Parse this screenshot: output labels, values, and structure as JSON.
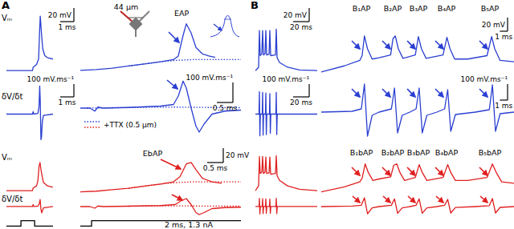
{
  "chart_data": [
    {
      "type": "line",
      "title": "A",
      "ylabel": "Vₘ",
      "xlim": [
        0,
        3.4
      ],
      "ylim": [
        -75,
        25
      ],
      "tick_labels": false,
      "scale_bar": {
        "x": 1,
        "x_label": "1 ms",
        "y": 20,
        "y_label": "20 mV"
      },
      "series": [
        {
          "color": "#2a3fd1",
          "line_style": "solid",
          "x": [
            0,
            1.9,
            1.95,
            2.2,
            2.35,
            2.42,
            2.47,
            2.55,
            2.65,
            2.8,
            3.0,
            3.4
          ],
          "values": [
            -67,
            -67,
            -62,
            -58,
            -50,
            -10,
            13,
            -10,
            -35,
            -45,
            -48,
            -50
          ]
        }
      ]
    },
    {
      "type": "line",
      "xlim": [
        0,
        5
      ],
      "ylim": [
        -75,
        20
      ],
      "tick_labels": false,
      "annotations": [
        "EAP",
        "44 µm"
      ],
      "series": [
        {
          "color": "#2a3fd1",
          "line_style": "solid",
          "x": [
            0,
            0.5,
            1,
            1.5,
            2,
            2.5,
            2.9,
            3.05,
            3.2,
            3.3,
            3.45,
            3.6,
            3.8,
            4.0,
            4.2
          ],
          "values": [
            -67,
            -66,
            -64,
            -61,
            -58,
            -55,
            -52,
            -47,
            -18,
            -2,
            -15,
            -35,
            -44,
            -47,
            -49
          ]
        },
        {
          "color": "#2a3fd1",
          "line_style": "dotted",
          "x": [
            1.5,
            2,
            2.5,
            3,
            3.5,
            4,
            4.5,
            5
          ],
          "values": [
            -61,
            -58,
            -55,
            -53,
            -52,
            -52,
            -52,
            -52
          ]
        }
      ]
    },
    {
      "type": "line",
      "ylabel": "δV/δt",
      "xlim": [
        0,
        3.4
      ],
      "ylim": [
        -235,
        235
      ],
      "tick_labels": false,
      "scale_bar": {
        "x": 1,
        "x_label": "1 ms",
        "y": 100,
        "y_label": "100 mV.ms⁻¹"
      },
      "series": [
        {
          "color": "#2a3fd1",
          "line_style": "solid",
          "x": [
            0,
            1.9,
            1.95,
            2.0,
            2.3,
            2.38,
            2.43,
            2.47,
            2.52,
            2.56,
            2.62,
            2.7,
            3.4
          ],
          "values": [
            0,
            0,
            20,
            0,
            5,
            60,
            220,
            100,
            -200,
            -180,
            -60,
            -10,
            0
          ]
        }
      ]
    },
    {
      "type": "line",
      "xlim": [
        0,
        5
      ],
      "ylim": [
        -180,
        140
      ],
      "tick_labels": false,
      "legend": "bottom-left",
      "scale_bar": {
        "x": 0.5,
        "x_label": "0.5 ms",
        "y": 100,
        "y_label": "100 mV.ms⁻¹"
      },
      "series": [
        {
          "color": "#2a3fd1",
          "line_style": "solid",
          "x": [
            0,
            0.3,
            0.45,
            0.55,
            0.7,
            1.5,
            2.5,
            2.9,
            3.05,
            3.2,
            3.3,
            3.45,
            3.6,
            3.7,
            3.85,
            4.1,
            4.5,
            5
          ],
          "values": [
            0,
            0,
            -15,
            5,
            0,
            3,
            10,
            18,
            60,
            135,
            100,
            0,
            -90,
            -120,
            -80,
            -30,
            -15,
            -10
          ]
        },
        {
          "name": "+TTX (0.5 µm)",
          "color": "#2a3fd1",
          "line_style": "dotted",
          "x": [
            0.2,
            1,
            2,
            3,
            4,
            5
          ],
          "values": [
            0,
            2,
            4,
            5,
            3,
            2
          ]
        }
      ]
    },
    {
      "type": "line",
      "ylabel": "Vₘ",
      "xlim": [
        0,
        3.4
      ],
      "ylim": [
        -75,
        -5
      ],
      "tick_labels": false,
      "series": [
        {
          "color": "#e02020",
          "line_style": "solid",
          "x": [
            0,
            1.9,
            1.95,
            2.2,
            2.3,
            2.38,
            2.45,
            2.55,
            2.7,
            3.0,
            3.4
          ],
          "values": [
            -67,
            -67,
            -63,
            -60,
            -52,
            -32,
            -26,
            -40,
            -55,
            -60,
            -62
          ]
        }
      ]
    },
    {
      "type": "line",
      "xlim": [
        0,
        5
      ],
      "ylim": [
        -75,
        -8
      ],
      "tick_labels": false,
      "annotations": [
        "EbAP"
      ],
      "scale_bar": {
        "x": 0.5,
        "x_label": "0.5 ms",
        "y": 20,
        "y_label": "20 mV"
      },
      "series": [
        {
          "color": "#e02020",
          "line_style": "solid",
          "x": [
            0,
            0.5,
            1,
            1.5,
            2,
            2.5,
            2.9,
            3.1,
            3.3,
            3.45,
            3.6,
            3.8,
            4.1,
            4.4
          ],
          "values": [
            -69,
            -68,
            -66,
            -64,
            -61,
            -58,
            -55,
            -48,
            -30,
            -28,
            -38,
            -50,
            -55,
            -57
          ]
        },
        {
          "color": "#e02020",
          "line_style": "dotted",
          "x": [
            1.5,
            2,
            2.5,
            3,
            3.5,
            4,
            4.5,
            5
          ],
          "values": [
            -64,
            -61,
            -58,
            -56,
            -55,
            -55,
            -55,
            -55
          ]
        }
      ]
    },
    {
      "type": "line",
      "ylabel": "δV/δt",
      "xlim": [
        0,
        3.4
      ],
      "ylim": [
        -71,
        76
      ],
      "tick_labels": false,
      "series": [
        {
          "color": "#e02020",
          "line_style": "solid",
          "x": [
            0,
            1.9,
            1.95,
            2.0,
            2.3,
            2.4,
            2.46,
            2.52,
            2.58,
            2.7,
            3.4
          ],
          "values": [
            0,
            0,
            15,
            0,
            3,
            20,
            52,
            -20,
            -47,
            -10,
            0
          ]
        }
      ]
    },
    {
      "type": "line",
      "xlim": [
        0,
        5
      ],
      "ylim": [
        -48,
        52
      ],
      "tick_labels": false,
      "series": [
        {
          "color": "#e02020",
          "line_style": "solid",
          "x": [
            0,
            0.3,
            0.45,
            0.55,
            0.7,
            1.5,
            2.5,
            2.95,
            3.15,
            3.3,
            3.45,
            3.6,
            3.7,
            3.85,
            4.1,
            4.5,
            5
          ],
          "values": [
            0,
            0,
            -8,
            3,
            0,
            2,
            5,
            10,
            30,
            40,
            10,
            -30,
            -40,
            -30,
            -10,
            -5,
            -3
          ]
        },
        {
          "color": "#e02020",
          "line_style": "dotted",
          "x": [
            1.5,
            2.5,
            3.5,
            4.5,
            5
          ],
          "values": [
            2,
            4,
            3,
            2,
            2
          ]
        }
      ]
    },
    {
      "type": "line",
      "xlim": [
        0,
        3.4
      ],
      "ylim": [
        -0.3,
        1.6
      ],
      "tick_labels": false,
      "series": [
        {
          "color": "#000000",
          "line_style": "solid",
          "x": [
            0,
            1.06,
            1.06,
            2.06,
            2.06,
            3.4
          ],
          "values": [
            0,
            0,
            1.3,
            1.3,
            0,
            0
          ]
        }
      ]
    },
    {
      "type": "line",
      "xlim": [
        0,
        5
      ],
      "ylim": [
        -0.3,
        1.6
      ],
      "tick_labels": false,
      "annotations": [
        "2 ms, 1.3 nA"
      ],
      "series": [
        {
          "color": "#000000",
          "line_style": "solid",
          "x": [
            0,
            0.35,
            0.35,
            5
          ],
          "values": [
            0,
            0,
            1.3,
            1.3
          ]
        }
      ]
    },
    {
      "type": "line",
      "title": "B",
      "xlim": [
        0,
        77
      ],
      "ylim": [
        -75,
        25
      ],
      "tick_labels": false,
      "scale_bar": {
        "x": 20,
        "x_label": "20 ms",
        "y": 20,
        "y_label": "20 mV"
      },
      "series": [
        {
          "color": "#2a3fd1",
          "line_style": "solid",
          "x": [
            0,
            4,
            5,
            6,
            8,
            9,
            10,
            12,
            13,
            14,
            17,
            18,
            19,
            25,
            26,
            27,
            30,
            40,
            55,
            77
          ],
          "values": [
            -67,
            -62,
            -8,
            -45,
            -42,
            -8,
            -44,
            -42,
            -8,
            -44,
            -43,
            -8,
            -45,
            -44,
            -6,
            -48,
            -55,
            -62,
            -66,
            -67
          ]
        }
      ]
    },
    {
      "type": "line",
      "xlim": [
        0,
        25
      ],
      "ylim": [
        -75,
        25
      ],
      "tick_labels": false,
      "annotations": [
        "B₁AP",
        "B₂AP",
        "B₃AP",
        "B₄AP",
        "B₅AP"
      ],
      "scale_bar": {
        "x": 1,
        "x_label": "1 ms",
        "y": 20,
        "y_label": "20 mV"
      },
      "series": [
        {
          "color": "#2a3fd1",
          "line_style": "solid",
          "x": [
            0,
            3,
            5,
            5.3,
            5.6,
            6.0,
            6.6,
            7.5,
            9,
            9.3,
            9.6,
            10,
            10.6,
            12.2,
            12.6,
            13.0,
            13.6,
            15.8,
            16.3,
            16.7,
            17.3,
            19,
            21.5,
            22.1,
            22.5,
            23.2,
            25
          ],
          "values": [
            -69,
            -60,
            -52,
            -45,
            -16,
            -35,
            -50,
            -48,
            -44,
            -20,
            -16,
            -35,
            -49,
            -44,
            -17,
            -35,
            -49,
            -44,
            -18,
            -35,
            -50,
            -50,
            -45,
            -17,
            -35,
            -52,
            -54
          ]
        }
      ]
    },
    {
      "type": "line",
      "xlim": [
        0,
        77
      ],
      "ylim": [
        -235,
        235
      ],
      "tick_labels": false,
      "scale_bar": {
        "x": 20,
        "x_label": "20 ms",
        "y": 100,
        "y_label": "100 mV.ms⁻¹"
      },
      "series": [
        {
          "color": "#2a3fd1",
          "line_style": "solid",
          "x": [
            0,
            4.5,
            5,
            5.6,
            6.2,
            8.5,
            9,
            9.6,
            10.2,
            12.5,
            13,
            13.6,
            14.2,
            17.5,
            18,
            18.6,
            19.2,
            25.5,
            26,
            26.6,
            27.2,
            77
          ],
          "values": [
            0,
            0,
            176,
            -170,
            0,
            0,
            170,
            -165,
            0,
            0,
            165,
            -160,
            0,
            0,
            160,
            -150,
            0,
            0,
            170,
            -160,
            0,
            0
          ]
        }
      ]
    },
    {
      "type": "line",
      "xlim": [
        0,
        25
      ],
      "ylim": [
        -200,
        200
      ],
      "tick_labels": false,
      "scale_bar": {
        "x": 1,
        "x_label": "1 ms",
        "y": 100,
        "y_label": "100 mV.ms⁻¹"
      },
      "series": [
        {
          "color": "#2a3fd1",
          "line_style": "solid",
          "x": [
            0,
            4,
            5.2,
            5.6,
            6.0,
            6.6,
            7.5,
            9.1,
            9.5,
            9.9,
            10.5,
            11.5,
            12.3,
            12.7,
            13.1,
            13.7,
            15,
            16.0,
            16.4,
            16.8,
            17.4,
            20,
            21.8,
            22.2,
            22.6,
            23.2,
            25
          ],
          "values": [
            0,
            5,
            20,
            175,
            -150,
            -20,
            0,
            20,
            150,
            -130,
            -20,
            0,
            20,
            150,
            -130,
            -20,
            0,
            20,
            140,
            -120,
            -15,
            0,
            15,
            170,
            -120,
            -10,
            0
          ]
        }
      ]
    },
    {
      "type": "line",
      "xlim": [
        0,
        77
      ],
      "ylim": [
        -75,
        -5
      ],
      "tick_labels": false,
      "series": [
        {
          "color": "#e02020",
          "line_style": "solid",
          "x": [
            0,
            4,
            5,
            6,
            8,
            9,
            10,
            12,
            13,
            14,
            17,
            18,
            19,
            25,
            26,
            27,
            30,
            40,
            55,
            77
          ],
          "values": [
            -67,
            -60,
            -17,
            -42,
            -40,
            -17,
            -42,
            -40,
            -18,
            -42,
            -41,
            -18,
            -43,
            -42,
            -16,
            -45,
            -52,
            -60,
            -65,
            -67
          ]
        }
      ]
    },
    {
      "type": "line",
      "xlim": [
        0,
        25
      ],
      "ylim": [
        -75,
        -8
      ],
      "tick_labels": false,
      "annotations": [
        "B₁bAP",
        "B₂bAP",
        "B₃bAP",
        "B₄bAP",
        "B₅bAP"
      ],
      "series": [
        {
          "color": "#e02020",
          "line_style": "solid",
          "x": [
            0,
            3,
            5,
            5.3,
            5.7,
            6.1,
            6.7,
            7.5,
            9,
            9.4,
            9.8,
            10.2,
            10.8,
            12.2,
            12.7,
            13.1,
            13.7,
            15.8,
            16.4,
            16.8,
            17.4,
            19,
            21.5,
            22.2,
            22.7,
            23.4,
            25
          ],
          "values": [
            -69,
            -62,
            -55,
            -50,
            -30,
            -42,
            -53,
            -51,
            -48,
            -32,
            -30,
            -42,
            -53,
            -49,
            -31,
            -42,
            -53,
            -49,
            -31,
            -42,
            -53,
            -53,
            -49,
            -30,
            -42,
            -55,
            -57
          ]
        }
      ]
    },
    {
      "type": "line",
      "xlim": [
        0,
        77
      ],
      "ylim": [
        -71,
        76
      ],
      "tick_labels": false,
      "series": [
        {
          "color": "#e02020",
          "line_style": "solid",
          "x": [
            0,
            4.5,
            5,
            5.6,
            6.2,
            8.5,
            9,
            9.6,
            10.2,
            12.5,
            13,
            13.6,
            14.2,
            17.5,
            18,
            18.6,
            19.2,
            25.5,
            26,
            26.6,
            27.2,
            77
          ],
          "values": [
            0,
            0,
            60,
            -55,
            0,
            0,
            58,
            -52,
            0,
            0,
            56,
            -50,
            0,
            0,
            55,
            -50,
            0,
            0,
            60,
            -52,
            0,
            0
          ]
        }
      ]
    },
    {
      "type": "line",
      "xlim": [
        0,
        25
      ],
      "ylim": [
        -60,
        65
      ],
      "tick_labels": false,
      "series": [
        {
          "color": "#e02020",
          "line_style": "solid",
          "x": [
            0,
            4,
            5.2,
            5.6,
            6.0,
            6.6,
            7.5,
            9.1,
            9.5,
            9.9,
            10.5,
            11.5,
            12.3,
            12.7,
            13.1,
            13.7,
            15,
            16.0,
            16.4,
            16.8,
            17.4,
            20,
            21.8,
            22.2,
            22.6,
            23.2,
            25
          ],
          "values": [
            0,
            3,
            8,
            55,
            -45,
            -8,
            0,
            8,
            48,
            -42,
            -8,
            0,
            8,
            48,
            -42,
            -8,
            0,
            8,
            45,
            -40,
            -6,
            0,
            6,
            50,
            -40,
            -5,
            0
          ]
        }
      ]
    }
  ]
}
